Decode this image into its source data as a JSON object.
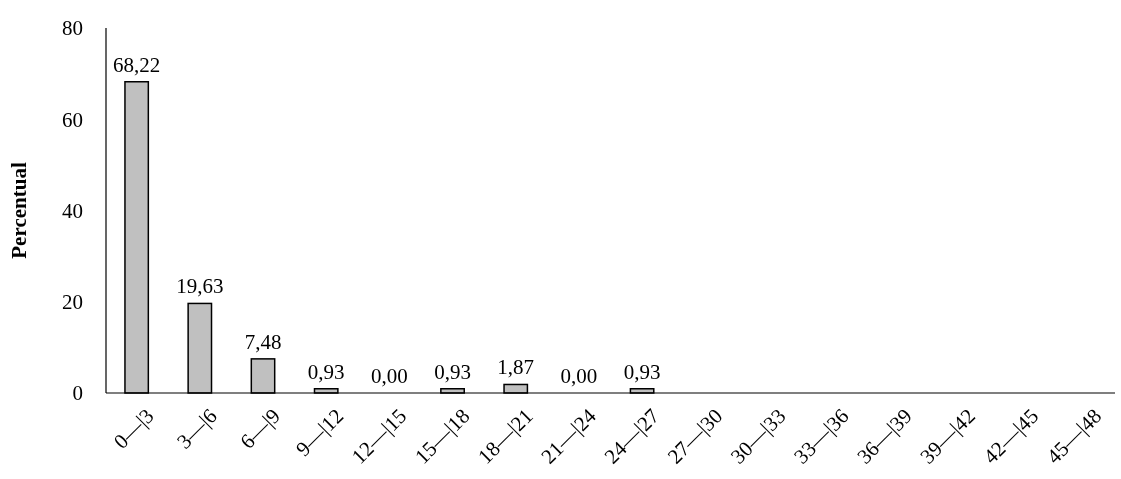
{
  "chart_data": {
    "type": "bar",
    "ylabel": "Percentual",
    "categories": [
      "0—|3",
      "3—|6",
      "6—|9",
      "9—|12",
      "12—|15",
      "15—|18",
      "18—|21",
      "21—|24",
      "24—|27",
      "27—|30",
      "30—|33",
      "33—|36",
      "36—|39",
      "39—|42",
      "42—|45",
      "45—|48"
    ],
    "values": [
      68.22,
      19.63,
      7.48,
      0.93,
      0,
      0.93,
      1.87,
      0,
      0.93,
      0,
      0,
      0,
      0,
      0,
      0,
      0
    ],
    "value_labels": [
      "68,22",
      "19,63",
      "7,48",
      "0,93",
      "0,00",
      "0,93",
      "1,87",
      "0,00",
      "0,93",
      null,
      null,
      null,
      null,
      null,
      null,
      null
    ],
    "color": "#c0c0c0",
    "ylim": [
      0,
      80
    ],
    "yticks": [
      0,
      20,
      40,
      60,
      80
    ]
  }
}
